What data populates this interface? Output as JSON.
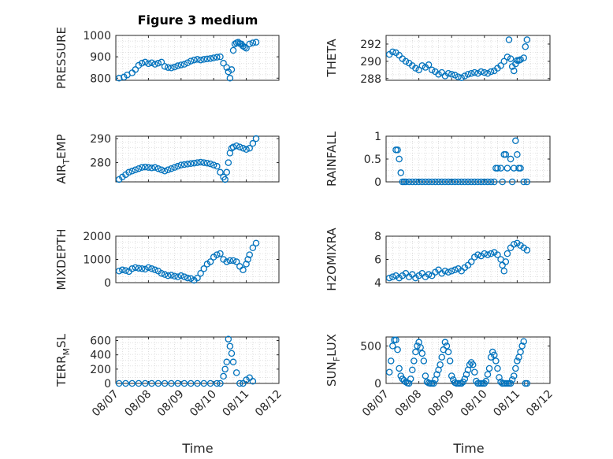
{
  "figure": {
    "title": "Figure 3 medium",
    "marker_color": "#0072BD",
    "xlabel": "Time",
    "x_ticks": [
      "08/07",
      "08/08",
      "08/09",
      "08/10",
      "08/11",
      "08/12"
    ],
    "x_range": [
      0,
      5
    ]
  },
  "chart_data": [
    {
      "id": "pressure",
      "type": "scatter",
      "ylabel": {
        "main": "PRESSURE",
        "sub": ""
      },
      "ylim": [
        790,
        1000
      ],
      "yticks": [
        800,
        900,
        1000
      ],
      "ytick_labels": [
        "800",
        "900",
        "1000"
      ],
      "series": [
        {
          "x": [
            0.1,
            0.25,
            0.35,
            0.5,
            0.6,
            0.7,
            0.8,
            0.9,
            1.0,
            1.1,
            1.2,
            1.3,
            1.4,
            1.5,
            1.6,
            1.7,
            1.8,
            1.9,
            2.0,
            2.1,
            2.2,
            2.3,
            2.4,
            2.5,
            2.6,
            2.7,
            2.8,
            2.9,
            3.0,
            3.1,
            3.2,
            3.3,
            3.4,
            3.45,
            3.5,
            3.55,
            3.6,
            3.65,
            3.7,
            3.75,
            3.8,
            3.85,
            3.9,
            3.95,
            4.0,
            4.1,
            4.2,
            4.3
          ],
          "y": [
            800,
            805,
            815,
            825,
            840,
            860,
            870,
            875,
            868,
            872,
            865,
            870,
            875,
            855,
            850,
            848,
            852,
            858,
            862,
            865,
            872,
            880,
            885,
            888,
            885,
            888,
            890,
            892,
            895,
            898,
            900,
            870,
            850,
            830,
            800,
            840,
            930,
            960,
            965,
            968,
            962,
            960,
            950,
            945,
            940,
            960,
            965,
            968
          ]
        }
      ]
    },
    {
      "id": "theta",
      "type": "scatter",
      "ylabel": {
        "main": "THETA",
        "sub": ""
      },
      "ylim": [
        287.8,
        293
      ],
      "yticks": [
        288,
        290,
        292
      ],
      "ytick_labels": [
        "288",
        "290",
        "292"
      ],
      "series": [
        {
          "x": [
            0.1,
            0.2,
            0.3,
            0.4,
            0.5,
            0.6,
            0.7,
            0.8,
            0.9,
            1.0,
            1.1,
            1.2,
            1.3,
            1.4,
            1.5,
            1.6,
            1.7,
            1.8,
            1.9,
            2.0,
            2.1,
            2.2,
            2.3,
            2.4,
            2.5,
            2.6,
            2.7,
            2.8,
            2.9,
            3.0,
            3.1,
            3.2,
            3.3,
            3.4,
            3.5,
            3.6,
            3.7,
            3.75,
            3.8,
            3.85,
            3.9,
            3.95,
            4.0,
            4.05,
            4.1,
            4.2,
            4.25,
            4.3
          ],
          "y": [
            290.8,
            291.1,
            291.0,
            290.7,
            290.3,
            290.0,
            289.8,
            289.5,
            289.2,
            289.0,
            289.5,
            289.3,
            289.6,
            289.0,
            288.8,
            288.5,
            288.7,
            288.3,
            288.6,
            288.5,
            288.4,
            288.2,
            288.1,
            288.3,
            288.5,
            288.6,
            288.7,
            288.6,
            288.8,
            288.7,
            288.6,
            288.8,
            288.9,
            289.2,
            289.5,
            290.0,
            290.5,
            292.5,
            290.3,
            289.4,
            288.9,
            289.7,
            290.1,
            290.1,
            290.2,
            290.4,
            291.7,
            292.5
          ]
        }
      ]
    },
    {
      "id": "air_temp",
      "type": "scatter",
      "ylabel": {
        "main": "AIR",
        "sub": "T",
        "tail": "EMP"
      },
      "ylim": [
        272,
        291
      ],
      "yticks": [
        280,
        290
      ],
      "ytick_labels": [
        "280",
        "290"
      ],
      "series": [
        {
          "x": [
            0.1,
            0.2,
            0.3,
            0.4,
            0.5,
            0.6,
            0.7,
            0.8,
            0.9,
            1.0,
            1.1,
            1.2,
            1.3,
            1.4,
            1.5,
            1.6,
            1.7,
            1.8,
            1.9,
            2.0,
            2.1,
            2.2,
            2.3,
            2.4,
            2.5,
            2.6,
            2.7,
            2.8,
            2.9,
            3.0,
            3.1,
            3.2,
            3.3,
            3.35,
            3.4,
            3.45,
            3.5,
            3.55,
            3.6,
            3.7,
            3.8,
            3.9,
            4.0,
            4.1,
            4.2,
            4.3
          ],
          "y": [
            273,
            274,
            275,
            276,
            276.5,
            277,
            277.5,
            278,
            278.2,
            278,
            277.8,
            278,
            277.5,
            277,
            276.5,
            277,
            277.5,
            278,
            278.5,
            279,
            279.2,
            279.4,
            279.6,
            279.8,
            280,
            280.2,
            280,
            279.8,
            279.5,
            279,
            278.5,
            276,
            274,
            273,
            276,
            280,
            284,
            286,
            286.5,
            287,
            286.5,
            286,
            285.5,
            286,
            288,
            290
          ]
        }
      ]
    },
    {
      "id": "rainfall",
      "type": "scatter",
      "ylabel": {
        "main": "RAINFALL",
        "sub": ""
      },
      "ylim": [
        0,
        1
      ],
      "yticks": [
        0,
        0.5,
        1
      ],
      "ytick_labels": [
        "0",
        "0.5",
        "1"
      ],
      "series": [
        {
          "x": [
            0.3,
            0.35,
            0.4,
            0.45,
            0.5,
            0.55,
            0.6,
            0.7,
            0.8,
            0.9,
            1.0,
            1.1,
            1.2,
            1.3,
            1.4,
            1.5,
            1.6,
            1.7,
            1.8,
            1.9,
            2.0,
            2.1,
            2.2,
            2.3,
            2.4,
            2.5,
            2.6,
            2.7,
            2.8,
            2.9,
            3.0,
            3.1,
            3.2,
            3.3,
            3.35,
            3.4,
            3.5,
            3.55,
            3.6,
            3.65,
            3.7,
            3.8,
            3.85,
            3.9,
            3.95,
            4.0,
            4.05,
            4.1,
            4.2,
            4.3
          ],
          "y": [
            0.7,
            0.7,
            0.5,
            0.2,
            0,
            0,
            0,
            0,
            0,
            0,
            0,
            0,
            0,
            0,
            0,
            0,
            0,
            0,
            0,
            0,
            0,
            0,
            0,
            0,
            0,
            0,
            0,
            0,
            0,
            0,
            0,
            0,
            0,
            0,
            0.3,
            0.3,
            0.3,
            0,
            0.6,
            0.6,
            0.3,
            0.5,
            0,
            0.3,
            0.9,
            0.6,
            0.3,
            0.3,
            0,
            0
          ]
        }
      ]
    },
    {
      "id": "mixdepth",
      "type": "scatter",
      "ylabel": {
        "main": "MIXDEPTH",
        "sub": ""
      },
      "ylim": [
        0,
        2000
      ],
      "yticks": [
        0,
        1000,
        2000
      ],
      "ytick_labels": [
        "0",
        "1000",
        "2000"
      ],
      "series": [
        {
          "x": [
            0.1,
            0.2,
            0.3,
            0.4,
            0.5,
            0.6,
            0.7,
            0.8,
            0.9,
            1.0,
            1.1,
            1.2,
            1.3,
            1.4,
            1.5,
            1.6,
            1.7,
            1.8,
            1.9,
            2.0,
            2.1,
            2.2,
            2.3,
            2.4,
            2.5,
            2.6,
            2.7,
            2.8,
            2.9,
            3.0,
            3.1,
            3.2,
            3.3,
            3.4,
            3.5,
            3.6,
            3.7,
            3.8,
            3.9,
            4.0,
            4.05,
            4.1,
            4.2,
            4.3
          ],
          "y": [
            500,
            550,
            520,
            480,
            600,
            650,
            620,
            600,
            580,
            650,
            600,
            550,
            500,
            400,
            350,
            300,
            320,
            280,
            250,
            300,
            250,
            200,
            180,
            100,
            200,
            400,
            600,
            800,
            900,
            1100,
            1200,
            1250,
            1000,
            900,
            950,
            950,
            900,
            700,
            550,
            800,
            1000,
            1200,
            1500,
            1700
          ]
        }
      ]
    },
    {
      "id": "h2omixra",
      "type": "scatter",
      "ylabel": {
        "main": "H2OMIXRA",
        "sub": ""
      },
      "ylim": [
        4,
        8
      ],
      "yticks": [
        4,
        6,
        8
      ],
      "ytick_labels": [
        "4",
        "6",
        "8"
      ],
      "series": [
        {
          "x": [
            0.1,
            0.2,
            0.3,
            0.4,
            0.5,
            0.6,
            0.7,
            0.8,
            0.9,
            1.0,
            1.1,
            1.2,
            1.3,
            1.4,
            1.5,
            1.6,
            1.7,
            1.8,
            1.9,
            2.0,
            2.1,
            2.2,
            2.3,
            2.4,
            2.5,
            2.6,
            2.7,
            2.8,
            2.9,
            3.0,
            3.1,
            3.2,
            3.3,
            3.4,
            3.5,
            3.55,
            3.6,
            3.65,
            3.7,
            3.8,
            3.9,
            4.0,
            4.1,
            4.2,
            4.3
          ],
          "y": [
            4.4,
            4.5,
            4.6,
            4.4,
            4.6,
            4.8,
            4.5,
            4.7,
            4.4,
            4.6,
            4.8,
            4.5,
            4.7,
            4.6,
            4.9,
            5.1,
            4.8,
            5.0,
            4.9,
            5.0,
            5.1,
            5.2,
            5.0,
            5.3,
            5.5,
            5.8,
            6.2,
            6.4,
            6.3,
            6.5,
            6.4,
            6.5,
            6.6,
            6.4,
            6.0,
            5.5,
            5.0,
            5.8,
            6.5,
            7.0,
            7.3,
            7.4,
            7.2,
            7.0,
            6.8
          ]
        }
      ]
    },
    {
      "id": "terr_msl",
      "type": "scatter",
      "ylabel": {
        "main": "TERR",
        "sub": "M",
        "tail": "SL"
      },
      "ylim": [
        0,
        650
      ],
      "yticks": [
        0,
        200,
        400,
        600
      ],
      "ytick_labels": [
        "0",
        "200",
        "400",
        "600"
      ],
      "series": [
        {
          "x": [
            0.1,
            0.3,
            0.5,
            0.7,
            0.9,
            1.1,
            1.3,
            1.5,
            1.7,
            1.9,
            2.1,
            2.3,
            2.5,
            2.7,
            2.9,
            3.1,
            3.2,
            3.3,
            3.35,
            3.4,
            3.45,
            3.5,
            3.55,
            3.6,
            3.7,
            3.8,
            3.9,
            4.0,
            4.1,
            4.2
          ],
          "y": [
            0,
            0,
            0,
            0,
            0,
            0,
            0,
            0,
            0,
            0,
            0,
            0,
            0,
            0,
            0,
            0,
            0,
            100,
            200,
            300,
            620,
            520,
            420,
            300,
            150,
            0,
            0,
            50,
            80,
            30
          ]
        }
      ]
    },
    {
      "id": "sun_flux",
      "type": "scatter",
      "ylabel": {
        "main": "SUN",
        "sub": "F",
        "tail": "LUX"
      },
      "ylim": [
        0,
        620
      ],
      "yticks": [
        0,
        500
      ],
      "ytick_labels": [
        "0",
        "500"
      ],
      "series": [
        {
          "x": [
            0.1,
            0.15,
            0.2,
            0.25,
            0.3,
            0.35,
            0.4,
            0.45,
            0.5,
            0.55,
            0.6,
            0.65,
            0.7,
            0.75,
            0.8,
            0.85,
            0.9,
            0.95,
            1.0,
            1.05,
            1.1,
            1.15,
            1.2,
            1.25,
            1.3,
            1.35,
            1.4,
            1.45,
            1.5,
            1.55,
            1.6,
            1.65,
            1.7,
            1.75,
            1.8,
            1.85,
            1.9,
            1.95,
            2.0,
            2.05,
            2.1,
            2.15,
            2.2,
            2.25,
            2.3,
            2.35,
            2.4,
            2.45,
            2.5,
            2.55,
            2.6,
            2.65,
            2.7,
            2.75,
            2.8,
            2.85,
            2.9,
            2.95,
            3.0,
            3.05,
            3.1,
            3.15,
            3.2,
            3.25,
            3.3,
            3.35,
            3.4,
            3.45,
            3.5,
            3.55,
            3.6,
            3.65,
            3.7,
            3.75,
            3.8,
            3.85,
            3.9,
            3.95,
            4.0,
            4.05,
            4.1,
            4.15,
            4.2,
            4.25,
            4.3
          ],
          "y": [
            150,
            300,
            500,
            580,
            580,
            450,
            200,
            100,
            60,
            40,
            20,
            5,
            0,
            60,
            180,
            300,
            420,
            500,
            550,
            480,
            400,
            300,
            100,
            20,
            5,
            0,
            0,
            0,
            50,
            120,
            180,
            250,
            350,
            450,
            550,
            500,
            420,
            300,
            100,
            50,
            10,
            0,
            0,
            0,
            0,
            20,
            60,
            120,
            180,
            250,
            280,
            250,
            150,
            30,
            0,
            0,
            0,
            0,
            0,
            30,
            120,
            200,
            350,
            420,
            380,
            300,
            200,
            80,
            20,
            0,
            0,
            0,
            0,
            0,
            0,
            50,
            100,
            200,
            300,
            350,
            420,
            500,
            560,
            0,
            0
          ]
        }
      ]
    }
  ]
}
